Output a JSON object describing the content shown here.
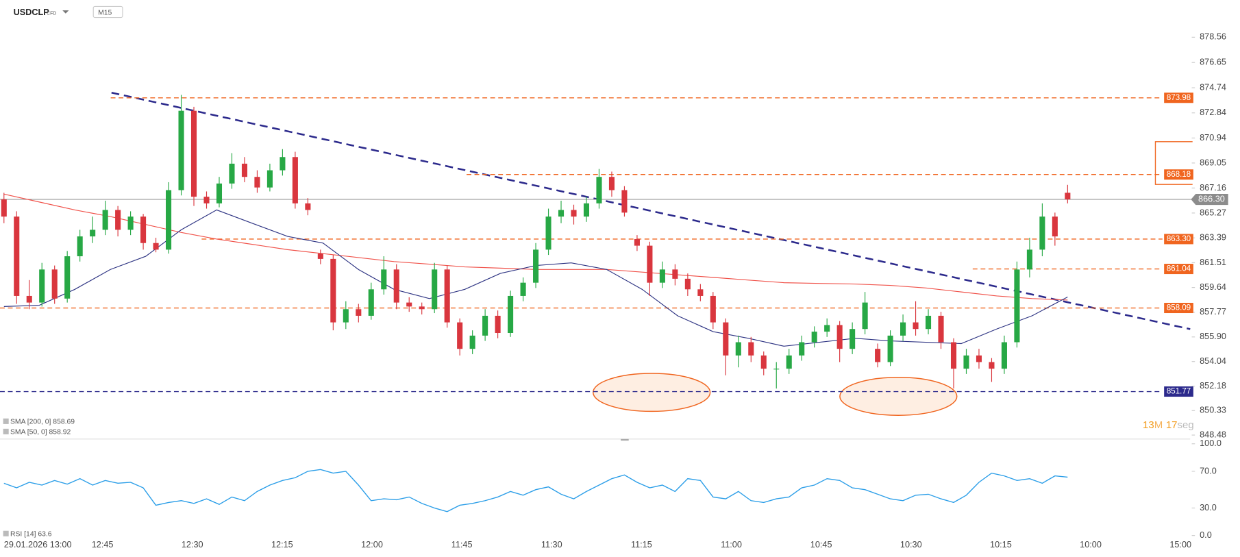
{
  "header": {
    "symbol": "USDCLP",
    "instrument_type": "CFD",
    "timeframe": "M15"
  },
  "chart_data": [
    {
      "type": "candlestick",
      "up_color": "#27a845",
      "down_color": "#d9363e",
      "ylim": [
        848.18,
        880.17
      ],
      "yticks": [
        878.56,
        876.65,
        874.74,
        872.84,
        {
          "value": 870.94,
          "label": "870.94"
        },
        869.05,
        867.16,
        865.27,
        863.39,
        861.51,
        859.64,
        857.77,
        {
          "value": 855.9,
          "label": "855.90"
        },
        854.04,
        852.18,
        850.33,
        848.48
      ],
      "x_labels": [
        "29.01.2026  13:00",
        "12:45",
        "12:30",
        "12:15",
        "12:00",
        "11:45",
        "11:30",
        "11:15",
        "11:00",
        "10:45",
        "10:30",
        "10:15",
        "10:00",
        "15:00"
      ],
      "ohlc": [
        [
          866.3,
          866.8,
          864.5,
          865.0
        ],
        [
          865.0,
          865.4,
          858.4,
          859.0
        ],
        [
          859.0,
          860.2,
          858.0,
          858.5
        ],
        [
          858.5,
          861.5,
          858.2,
          861.0
        ],
        [
          861.0,
          861.3,
          858.4,
          858.8
        ],
        [
          858.8,
          862.4,
          858.5,
          862.0
        ],
        [
          862.0,
          864.0,
          861.6,
          863.5
        ],
        [
          863.5,
          865.0,
          863.0,
          864.0
        ],
        [
          864.0,
          866.2,
          863.6,
          865.5
        ],
        [
          865.5,
          865.8,
          863.5,
          864.0
        ],
        [
          864.0,
          865.4,
          863.6,
          865.0
        ],
        [
          865.0,
          865.2,
          862.5,
          863.0
        ],
        [
          863.0,
          863.4,
          862.3,
          862.5
        ],
        [
          862.5,
          867.6,
          862.2,
          867.0
        ],
        [
          867.0,
          874.2,
          866.6,
          873.0
        ],
        [
          873.0,
          873.3,
          865.8,
          866.5
        ],
        [
          866.5,
          866.9,
          865.6,
          866.0
        ],
        [
          866.0,
          868.0,
          865.7,
          867.5
        ],
        [
          867.5,
          869.8,
          867.1,
          869.0
        ],
        [
          869.0,
          869.5,
          867.6,
          868.0
        ],
        [
          868.0,
          868.5,
          866.8,
          867.2
        ],
        [
          867.2,
          869.0,
          866.9,
          868.5
        ],
        [
          868.5,
          870.1,
          868.1,
          869.5
        ],
        [
          869.5,
          869.9,
          865.6,
          866.0
        ],
        [
          866.0,
          866.4,
          865.1,
          865.5
        ],
        [
          862.2,
          862.5,
          861.4,
          861.8
        ],
        [
          861.8,
          862.1,
          856.4,
          857.0
        ],
        [
          857.0,
          858.6,
          856.5,
          858.0
        ],
        [
          858.0,
          858.4,
          857.0,
          857.5
        ],
        [
          857.5,
          860.0,
          857.2,
          859.5
        ],
        [
          859.5,
          862.0,
          859.1,
          861.0
        ],
        [
          861.0,
          861.4,
          858.0,
          858.5
        ],
        [
          858.5,
          858.9,
          857.8,
          858.2
        ],
        [
          858.2,
          858.5,
          857.6,
          858.0
        ],
        [
          858.0,
          861.5,
          857.7,
          861.0
        ],
        [
          861.0,
          861.3,
          856.6,
          857.0
        ],
        [
          857.0,
          857.3,
          854.5,
          855.0
        ],
        [
          855.0,
          856.4,
          854.6,
          856.0
        ],
        [
          856.0,
          858.0,
          855.6,
          857.5
        ],
        [
          857.5,
          857.9,
          855.8,
          856.2
        ],
        [
          856.2,
          859.4,
          855.9,
          859.0
        ],
        [
          859.0,
          860.4,
          858.6,
          860.0
        ],
        [
          860.0,
          863.0,
          859.6,
          862.5
        ],
        [
          862.5,
          865.6,
          862.1,
          865.0
        ],
        [
          865.0,
          866.2,
          864.5,
          865.5
        ],
        [
          865.5,
          865.9,
          864.4,
          865.0
        ],
        [
          865.0,
          866.5,
          864.6,
          866.0
        ],
        [
          866.0,
          868.6,
          865.6,
          868.0
        ],
        [
          868.0,
          868.4,
          866.5,
          867.0
        ],
        [
          867.0,
          867.3,
          865.0,
          865.3
        ],
        [
          863.3,
          863.6,
          862.4,
          862.8
        ],
        [
          862.8,
          863.1,
          859.0,
          860.0
        ],
        [
          860.0,
          861.6,
          859.6,
          861.0
        ],
        [
          861.0,
          861.4,
          859.8,
          860.3
        ],
        [
          860.3,
          860.7,
          859.0,
          859.5
        ],
        [
          859.5,
          859.9,
          858.6,
          859.0
        ],
        [
          859.0,
          859.3,
          856.5,
          857.0
        ],
        [
          857.0,
          857.3,
          853.0,
          854.5
        ],
        [
          854.5,
          856.0,
          853.6,
          855.5
        ],
        [
          855.5,
          855.9,
          854.0,
          854.5
        ],
        [
          854.5,
          854.8,
          853.0,
          853.5
        ],
        [
          853.5,
          854.0,
          852.0,
          853.5
        ],
        [
          853.5,
          855.0,
          853.1,
          854.5
        ],
        [
          854.5,
          856.0,
          854.1,
          855.5
        ],
        [
          855.5,
          856.7,
          855.1,
          856.3
        ],
        [
          856.3,
          857.3,
          855.9,
          856.8
        ],
        [
          856.8,
          857.1,
          854.0,
          855.0
        ],
        [
          855.0,
          857.0,
          854.6,
          856.5
        ],
        [
          856.5,
          859.3,
          856.1,
          858.5
        ],
        [
          855.0,
          855.4,
          853.6,
          854.0
        ],
        [
          854.0,
          856.4,
          853.7,
          856.0
        ],
        [
          856.0,
          857.6,
          855.6,
          857.0
        ],
        [
          857.0,
          858.6,
          856.0,
          856.5
        ],
        [
          856.5,
          858.0,
          856.1,
          857.5
        ],
        [
          857.5,
          857.8,
          855.0,
          855.5
        ],
        [
          855.5,
          855.8,
          852.0,
          853.5
        ],
        [
          853.5,
          855.0,
          853.1,
          854.5
        ],
        [
          854.5,
          855.0,
          853.5,
          854.0
        ],
        [
          854.0,
          854.3,
          852.5,
          853.5
        ],
        [
          853.5,
          856.0,
          853.1,
          855.5
        ],
        [
          855.5,
          861.6,
          855.1,
          861.0
        ],
        [
          861.0,
          863.4,
          860.4,
          862.5
        ],
        [
          862.5,
          866.0,
          862.0,
          865.0
        ],
        [
          865.0,
          865.3,
          862.8,
          863.5
        ],
        [
          866.8,
          867.4,
          866.0,
          866.3
        ]
      ],
      "indicators": [
        {
          "name": "SMA [200,  0]",
          "value": 858.69,
          "color": "#f0524a",
          "values": [
            866.7,
            866.1,
            865.5,
            865.0,
            864.4,
            863.8,
            863.3,
            862.9,
            862.5,
            862.2,
            861.9,
            861.6,
            861.4,
            861.2,
            861.1,
            861.0,
            861.0,
            861.0,
            860.8,
            860.6,
            860.4,
            860.2,
            860.0,
            859.95,
            859.9,
            859.8,
            859.6,
            859.3,
            859.0,
            858.8,
            858.69
          ]
        },
        {
          "name": "SMA [50,  0]",
          "value": 858.92,
          "color": "#2e3483",
          "values": [
            858.2,
            858.3,
            859.5,
            861.0,
            862.0,
            864.0,
            865.5,
            864.5,
            863.5,
            863.0,
            861.0,
            859.5,
            858.8,
            859.5,
            860.7,
            861.3,
            861.5,
            861.0,
            859.5,
            857.5,
            856.3,
            855.8,
            855.2,
            855.5,
            855.8,
            855.6,
            855.5,
            855.4,
            856.5,
            857.5,
            858.92
          ]
        }
      ],
      "levels": [
        {
          "value": 873.98,
          "color": "#f0651f"
        },
        {
          "value": 868.18,
          "color": "#f0651f"
        },
        {
          "value": 863.3,
          "label": "863.30",
          "color": "#f0651f"
        },
        {
          "value": 861.04,
          "color": "#f0651f"
        },
        {
          "value": 858.09,
          "color": "#f0651f"
        },
        {
          "value": 851.77,
          "color": "#2c2a8c"
        }
      ],
      "last": {
        "value": 866.3,
        "label": "866.30",
        "color": "#8c8c8c"
      },
      "countdown": {
        "minutes": 13,
        "minutes_unit": "M",
        "seconds": 17,
        "seconds_unit": "seg"
      }
    },
    {
      "type": "line",
      "name": "RSI [14]",
      "value": 63.6,
      "color": "#2b9ee8",
      "ylim": [
        0,
        100
      ],
      "yticks": [
        {
          "value": 100,
          "label": "100.0"
        },
        {
          "value": 70,
          "label": "70.0"
        },
        {
          "value": 30,
          "label": "30.0"
        },
        {
          "value": 0,
          "label": "0.0"
        }
      ],
      "values": [
        57,
        52,
        58,
        55,
        60,
        56,
        62,
        55,
        60,
        57,
        58,
        52,
        33,
        36,
        38,
        35,
        40,
        34,
        42,
        38,
        48,
        55,
        60,
        63,
        70,
        72,
        68,
        70,
        55,
        38,
        40,
        39,
        42,
        35,
        30,
        26,
        33,
        35,
        38,
        42,
        48,
        44,
        50,
        53,
        45,
        40,
        48,
        55,
        62,
        66,
        58,
        52,
        55,
        48,
        62,
        60,
        42,
        40,
        48,
        38,
        36,
        40,
        42,
        52,
        55,
        62,
        60,
        52,
        50,
        45,
        40,
        38,
        44,
        45,
        40,
        36,
        44,
        58,
        68,
        65,
        60,
        62,
        57,
        65,
        63.6
      ]
    }
  ]
}
